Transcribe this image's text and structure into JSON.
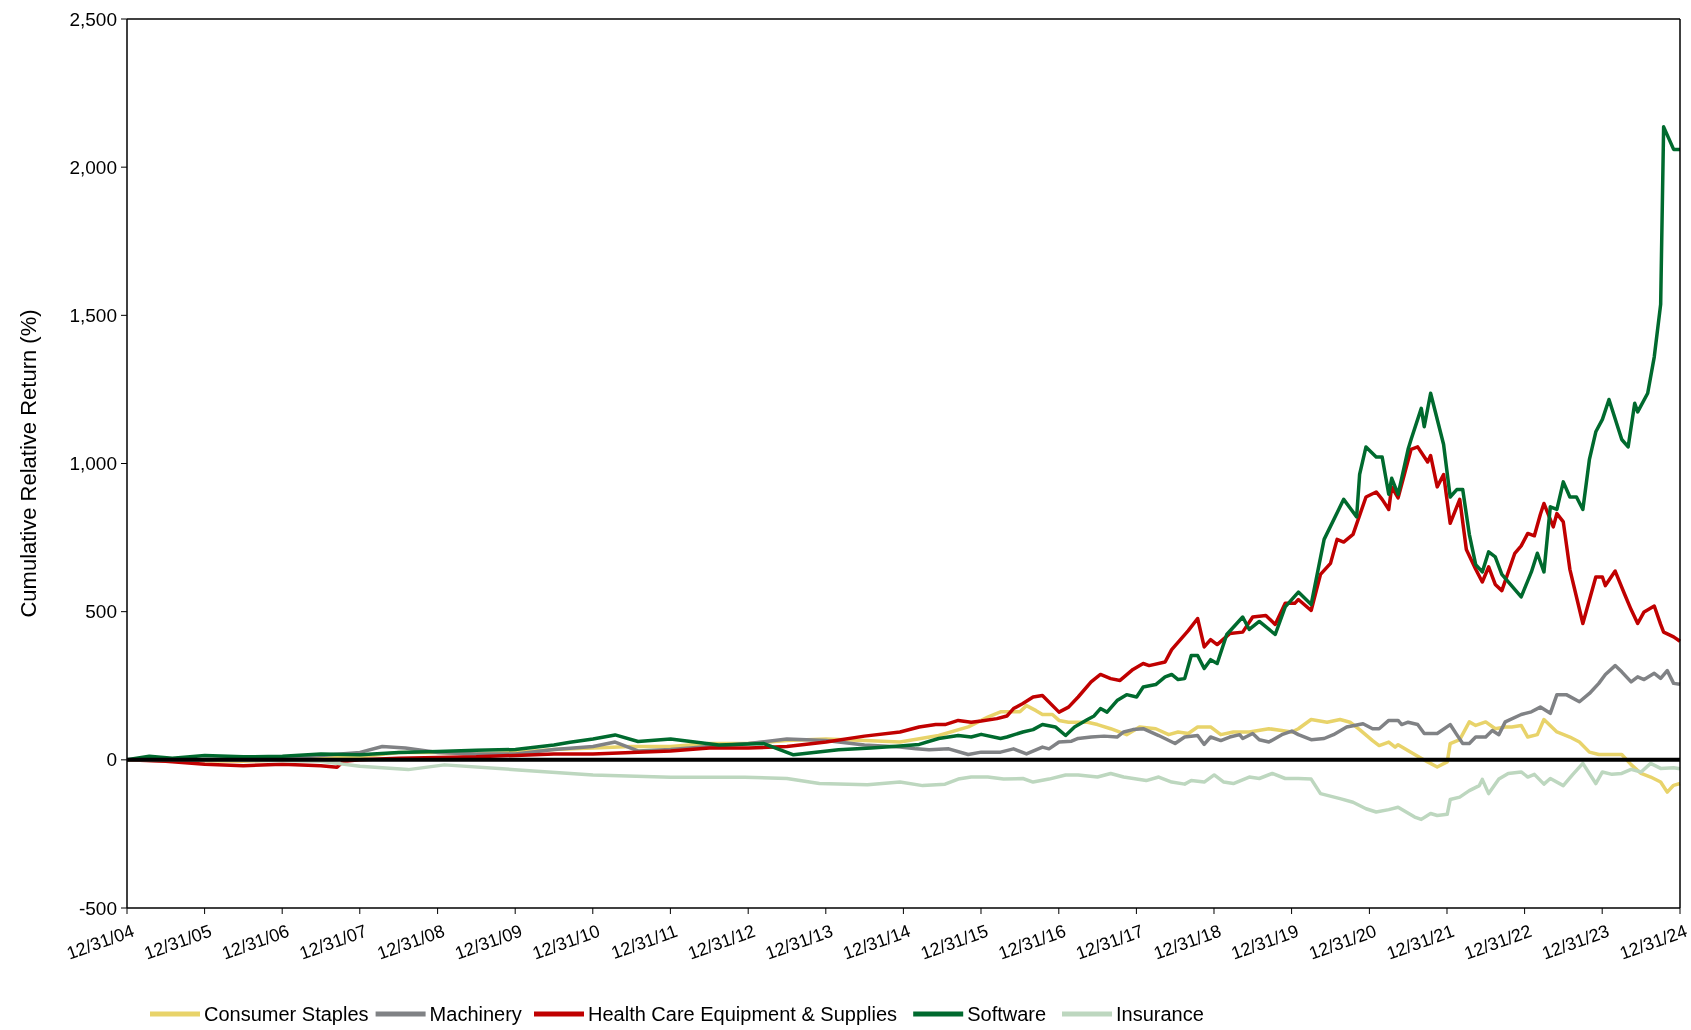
{
  "chart_data": {
    "type": "line",
    "ylabel": "Cumulative Relative Return (%)",
    "xlim": [
      "2004-12-31",
      "2024-12-31"
    ],
    "ylim": [
      -500,
      2500
    ],
    "xticks": [
      {
        "value": "2004-12-31",
        "label": "12/31/04"
      },
      {
        "value": "2005-12-31",
        "label": "12/31/05"
      },
      {
        "value": "2006-12-31",
        "label": "12/31/06"
      },
      {
        "value": "2007-12-31",
        "label": "12/31/07"
      },
      {
        "value": "2008-12-31",
        "label": "12/31/08"
      },
      {
        "value": "2009-12-31",
        "label": "12/31/09"
      },
      {
        "value": "2010-12-31",
        "label": "12/31/10"
      },
      {
        "value": "2011-12-31",
        "label": "12/31/11"
      },
      {
        "value": "2012-12-31",
        "label": "12/31/12"
      },
      {
        "value": "2013-12-31",
        "label": "12/31/13"
      },
      {
        "value": "2014-12-31",
        "label": "12/31/14"
      },
      {
        "value": "2015-12-31",
        "label": "12/31/15"
      },
      {
        "value": "2016-12-31",
        "label": "12/31/16"
      },
      {
        "value": "2017-12-31",
        "label": "12/31/17"
      },
      {
        "value": "2018-12-31",
        "label": "12/31/18"
      },
      {
        "value": "2019-12-31",
        "label": "12/31/19"
      },
      {
        "value": "2020-12-31",
        "label": "12/31/20"
      },
      {
        "value": "2021-12-31",
        "label": "12/31/21"
      },
      {
        "value": "2022-12-31",
        "label": "12/31/22"
      },
      {
        "value": "2023-12-31",
        "label": "12/31/23"
      },
      {
        "value": "2024-12-31",
        "label": "12/31/24"
      }
    ],
    "yticks": [
      {
        "value": -500,
        "label": "-500"
      },
      {
        "value": 0,
        "label": "0"
      },
      {
        "value": 500,
        "label": "500"
      },
      {
        "value": 1000,
        "label": "1,000"
      },
      {
        "value": 1500,
        "label": "1,500"
      },
      {
        "value": 2000,
        "label": "2,000"
      },
      {
        "value": 2500,
        "label": "2,500"
      }
    ],
    "legend": "bottom",
    "marker": "none",
    "line_style": "solid",
    "series": [
      {
        "name": "Consumer Staples",
        "color": "#e8d36a",
        "x": [
          "2004-12-31",
          "2005-07-01",
          "2006-01-01",
          "2006-07-01",
          "2007-01-01",
          "2007-07-01",
          "2008-01-01",
          "2008-07-01",
          "2009-01-01",
          "2009-07-01",
          "2010-01-01",
          "2010-07-01",
          "2011-01-01",
          "2011-07-01",
          "2012-01-01",
          "2012-07-01",
          "2013-01-01",
          "2013-07-01",
          "2014-01-01",
          "2014-07-01",
          "2014-12-15",
          "2015-06-15",
          "2015-11-01",
          "2016-02-01",
          "2016-04-01",
          "2016-07-01",
          "2016-08-01",
          "2016-09-15",
          "2016-10-15",
          "2016-12-01",
          "2017-01-01",
          "2017-02-15",
          "2017-05-15",
          "2017-07-01",
          "2017-09-01",
          "2017-11-15",
          "2018-01-15",
          "2018-04-01",
          "2018-06-01",
          "2018-07-15",
          "2018-09-01",
          "2018-10-15",
          "2018-12-15",
          "2019-02-01",
          "2019-04-01",
          "2019-06-15",
          "2019-09-15",
          "2019-11-15",
          "2020-01-01",
          "2020-02-01",
          "2020-04-01",
          "2020-06-15",
          "2020-08-15",
          "2020-10-01",
          "2020-11-15",
          "2021-01-15",
          "2021-02-15",
          "2021-04-01",
          "2021-05-01",
          "2021-05-15",
          "2021-08-01",
          "2021-10-01",
          "2021-11-15",
          "2022-01-01",
          "2022-01-15",
          "2022-03-01",
          "2022-04-15",
          "2022-05-15",
          "2022-07-01",
          "2022-08-15",
          "2022-10-01",
          "2022-11-01",
          "2022-12-15",
          "2023-01-15",
          "2023-03-01",
          "2023-04-01",
          "2023-06-01",
          "2023-08-01",
          "2023-09-15",
          "2023-11-01",
          "2023-12-15",
          "2024-04-01",
          "2024-05-15",
          "2024-07-01",
          "2024-08-15",
          "2024-10-01",
          "2024-11-01",
          "2024-12-01",
          "2024-12-31"
        ],
        "values": [
          0,
          0,
          -3,
          -5,
          0,
          5,
          10,
          25,
          25,
          20,
          25,
          35,
          40,
          45,
          45,
          55,
          55,
          65,
          70,
          65,
          60,
          82,
          111,
          144,
          162,
          162,
          183,
          166,
          153,
          153,
          133,
          127,
          127,
          119,
          105,
          85,
          111,
          105,
          85,
          94,
          89,
          111,
          111,
          85,
          94,
          94,
          105,
          99,
          94,
          105,
          136,
          127,
          136,
          127,
          102,
          65,
          48,
          60,
          43,
          51,
          18,
          -7,
          -24,
          -7,
          55,
          68,
          128,
          116,
          128,
          105,
          111,
          111,
          116,
          77,
          85,
          136,
          94,
          77,
          60,
          26,
          18,
          18,
          -16,
          -46,
          -58,
          -75,
          -109,
          -86,
          -80
        ]
      },
      {
        "name": "Machinery",
        "color": "#808285",
        "x": [
          "2004-12-31",
          "2005-07-01",
          "2006-01-01",
          "2006-07-01",
          "2007-01-01",
          "2007-07-01",
          "2008-01-01",
          "2008-04-15",
          "2008-08-01",
          "2009-01-01",
          "2009-07-01",
          "2010-01-01",
          "2010-07-01",
          "2011-01-01",
          "2011-04-15",
          "2011-08-01",
          "2012-01-01",
          "2012-07-01",
          "2013-01-01",
          "2013-07-01",
          "2014-01-01",
          "2014-07-01",
          "2014-12-15",
          "2015-03-01",
          "2015-05-01",
          "2015-08-01",
          "2015-11-01",
          "2016-01-01",
          "2016-04-01",
          "2016-06-01",
          "2016-08-01",
          "2016-10-15",
          "2016-11-15",
          "2017-01-01",
          "2017-03-01",
          "2017-04-01",
          "2017-06-01",
          "2017-08-01",
          "2017-10-01",
          "2017-11-01",
          "2017-12-15",
          "2018-02-01",
          "2018-04-15",
          "2018-07-01",
          "2018-08-15",
          "2018-10-15",
          "2018-11-15",
          "2018-12-15",
          "2019-02-01",
          "2019-03-15",
          "2019-05-01",
          "2019-05-15",
          "2019-07-01",
          "2019-08-01",
          "2019-09-15",
          "2019-11-15",
          "2020-01-01",
          "2020-02-01",
          "2020-04-01",
          "2020-06-01",
          "2020-07-15",
          "2020-09-15",
          "2020-12-01",
          "2021-01-15",
          "2021-02-15",
          "2021-04-01",
          "2021-05-15",
          "2021-06-01",
          "2021-07-01",
          "2021-08-15",
          "2021-09-15",
          "2021-11-15",
          "2022-01-15",
          "2022-02-15",
          "2022-03-15",
          "2022-04-15",
          "2022-05-15",
          "2022-07-01",
          "2022-08-01",
          "2022-09-01",
          "2022-10-01",
          "2022-12-15",
          "2023-02-01",
          "2023-03-15",
          "2023-05-01",
          "2023-06-01",
          "2023-07-15",
          "2023-09-15",
          "2023-11-01",
          "2023-12-15",
          "2024-01-15",
          "2024-03-01",
          "2024-04-01",
          "2024-05-15",
          "2024-06-15",
          "2024-07-15",
          "2024-09-01",
          "2024-10-01",
          "2024-11-01",
          "2024-12-01",
          "2024-12-31"
        ],
        "values": [
          0,
          -3,
          0,
          5,
          5,
          15,
          25,
          45,
          40,
          25,
          20,
          20,
          35,
          45,
          60,
          30,
          35,
          45,
          55,
          70,
          65,
          50,
          43,
          37,
          34,
          37,
          18,
          26,
          26,
          37,
          20,
          43,
          37,
          60,
          63,
          72,
          77,
          80,
          77,
          94,
          102,
          105,
          82,
          55,
          77,
          82,
          52,
          77,
          65,
          77,
          85,
          72,
          89,
          68,
          60,
          85,
          97,
          85,
          68,
          72,
          85,
          111,
          122,
          105,
          105,
          133,
          133,
          119,
          127,
          119,
          89,
          89,
          119,
          85,
          55,
          55,
          77,
          77,
          99,
          85,
          128,
          153,
          162,
          178,
          157,
          220,
          220,
          196,
          224,
          258,
          288,
          318,
          297,
          263,
          280,
          271,
          292,
          275,
          301,
          258,
          255
        ]
      },
      {
        "name": "Health Care Equipment & Supplies",
        "color": "#c00000",
        "x": [
          "2004-12-31",
          "2005-07-01",
          "2006-01-01",
          "2006-07-01",
          "2007-01-01",
          "2007-07-01",
          "2007-09-15",
          "2007-10-15",
          "2008-01-01",
          "2008-07-01",
          "2009-01-01",
          "2009-07-01",
          "2010-01-01",
          "2010-07-01",
          "2011-01-01",
          "2011-07-01",
          "2012-01-01",
          "2012-07-01",
          "2013-01-01",
          "2013-07-01",
          "2014-01-01",
          "2014-07-01",
          "2014-12-15",
          "2015-03-15",
          "2015-06-01",
          "2015-07-15",
          "2015-09-15",
          "2015-11-15",
          "2016-01-01",
          "2016-03-15",
          "2016-05-01",
          "2016-06-01",
          "2016-07-15",
          "2016-09-01",
          "2016-10-15",
          "2017-01-01",
          "2017-02-15",
          "2017-04-01",
          "2017-06-01",
          "2017-07-15",
          "2017-09-01",
          "2017-10-15",
          "2017-12-15",
          "2018-02-01",
          "2018-03-01",
          "2018-05-15",
          "2018-06-15",
          "2018-09-01",
          "2018-10-15",
          "2018-11-15",
          "2018-12-15",
          "2019-01-15",
          "2019-03-15",
          "2019-05-15",
          "2019-07-01",
          "2019-09-01",
          "2019-10-15",
          "2019-12-01",
          "2020-01-15",
          "2020-02-01",
          "2020-04-01",
          "2020-05-15",
          "2020-07-01",
          "2020-08-01",
          "2020-09-01",
          "2020-10-15",
          "2020-12-15",
          "2021-02-01",
          "2021-03-01",
          "2021-04-01",
          "2021-04-15",
          "2021-05-15",
          "2021-07-15",
          "2021-08-15",
          "2021-10-01",
          "2021-10-15",
          "2021-11-15",
          "2021-12-15",
          "2022-01-15",
          "2022-03-01",
          "2022-04-01",
          "2022-05-15",
          "2022-06-15",
          "2022-07-15",
          "2022-08-15",
          "2022-09-15",
          "2022-11-15",
          "2022-12-15",
          "2023-01-15",
          "2023-02-15",
          "2023-03-15",
          "2023-04-01",
          "2023-05-15",
          "2023-06-01",
          "2023-07-01",
          "2023-08-01",
          "2023-10-01",
          "2023-12-01",
          "2024-01-01",
          "2024-01-15",
          "2024-03-01",
          "2024-04-15",
          "2024-05-15",
          "2024-06-15",
          "2024-07-15",
          "2024-09-01",
          "2024-10-01",
          "2024-10-15",
          "2024-12-01",
          "2024-12-31"
        ],
        "values": [
          0,
          -5,
          -15,
          -20,
          -15,
          -20,
          -25,
          -5,
          0,
          5,
          8,
          10,
          15,
          20,
          20,
          25,
          30,
          40,
          40,
          45,
          60,
          80,
          94,
          111,
          119,
          119,
          133,
          127,
          131,
          139,
          148,
          173,
          190,
          212,
          217,
          161,
          178,
          212,
          263,
          288,
          274,
          268,
          305,
          325,
          318,
          330,
          372,
          436,
          477,
          381,
          406,
          389,
          426,
          431,
          482,
          487,
          457,
          528,
          528,
          541,
          504,
          626,
          663,
          744,
          735,
          761,
          887,
          904,
          879,
          845,
          921,
          884,
          1048,
          1056,
          1005,
          1027,
          921,
          963,
          798,
          879,
          710,
          643,
          600,
          651,
          592,
          571,
          697,
          722,
          764,
          756,
          828,
          865,
          786,
          831,
          803,
          643,
          460,
          617,
          617,
          588,
          637,
          558,
          507,
          460,
          499,
          519,
          457,
          431,
          415,
          400
        ]
      },
      {
        "name": "Software",
        "color": "#006a2e",
        "x": [
          "2004-12-31",
          "2005-04-15",
          "2005-08-01",
          "2006-01-01",
          "2006-07-01",
          "2007-01-01",
          "2007-07-01",
          "2008-01-01",
          "2008-07-01",
          "2009-01-01",
          "2009-07-01",
          "2010-01-01",
          "2010-07-01",
          "2010-09-15",
          "2011-01-01",
          "2011-04-15",
          "2011-08-01",
          "2012-01-01",
          "2012-08-15",
          "2013-03-15",
          "2013-08-01",
          "2014-03-01",
          "2014-08-01",
          "2014-12-15",
          "2015-03-15",
          "2015-06-15",
          "2015-09-15",
          "2015-11-15",
          "2016-01-01",
          "2016-04-01",
          "2016-05-01",
          "2016-07-15",
          "2016-09-01",
          "2016-10-15",
          "2016-12-15",
          "2017-02-01",
          "2017-03-15",
          "2017-05-15",
          "2017-06-15",
          "2017-07-15",
          "2017-08-15",
          "2017-10-01",
          "2017-11-15",
          "2018-01-01",
          "2018-02-01",
          "2018-04-01",
          "2018-05-15",
          "2018-06-15",
          "2018-07-15",
          "2018-08-15",
          "2018-09-15",
          "2018-10-15",
          "2018-11-15",
          "2018-12-15",
          "2019-01-15",
          "2019-03-01",
          "2019-05-15",
          "2019-06-15",
          "2019-08-01",
          "2019-10-15",
          "2019-12-01",
          "2020-02-01",
          "2020-04-01",
          "2020-06-01",
          "2020-09-01",
          "2020-11-01",
          "2020-11-15",
          "2020-12-15",
          "2021-02-01",
          "2021-03-01",
          "2021-04-01",
          "2021-04-15",
          "2021-05-15",
          "2021-07-01",
          "2021-07-15",
          "2021-09-01",
          "2021-09-15",
          "2021-10-15",
          "2021-12-15",
          "2022-01-15",
          "2022-02-15",
          "2022-03-15",
          "2022-04-15",
          "2022-05-15",
          "2022-06-15",
          "2022-07-15",
          "2022-08-15",
          "2022-09-15",
          "2022-12-15",
          "2023-02-01",
          "2023-03-01",
          "2023-04-01",
          "2023-05-01",
          "2023-06-01",
          "2023-07-01",
          "2023-08-01",
          "2023-09-01",
          "2023-10-01",
          "2023-11-01",
          "2023-12-01",
          "2024-01-01",
          "2024-02-01",
          "2024-04-01",
          "2024-05-01",
          "2024-06-01",
          "2024-06-15",
          "2024-08-01",
          "2024-09-01",
          "2024-10-01",
          "2024-10-15",
          "2024-12-01",
          "2024-12-31"
        ],
        "values": [
          0,
          12,
          5,
          15,
          10,
          12,
          20,
          17,
          25,
          28,
          32,
          35,
          50,
          59,
          70,
          84,
          62,
          70,
          50,
          55,
          17,
          34,
          40,
          47,
          52,
          72,
          82,
          77,
          86,
          72,
          77,
          94,
          102,
          119,
          111,
          82,
          111,
          136,
          148,
          173,
          161,
          200,
          220,
          212,
          246,
          254,
          280,
          288,
          271,
          274,
          352,
          352,
          308,
          338,
          325,
          423,
          482,
          440,
          467,
          423,
          516,
          566,
          524,
          744,
          879,
          820,
          963,
          1056,
          1022,
          1022,
          896,
          950,
          896,
          1048,
          1081,
          1186,
          1124,
          1237,
          1064,
          887,
          912,
          912,
          761,
          659,
          634,
          702,
          685,
          626,
          550,
          634,
          697,
          634,
          854,
          845,
          938,
          887,
          887,
          845,
          1014,
          1107,
          1149,
          1216,
          1081,
          1056,
          1203,
          1174,
          1237,
          1360,
          1537,
          2136,
          2060,
          2060
        ]
      },
      {
        "name": "Insurance",
        "color": "#bdd7bf",
        "x": [
          "2004-12-31",
          "2006-01-01",
          "2007-01-01",
          "2007-07-01",
          "2008-01-01",
          "2008-08-15",
          "2009-02-01",
          "2010-01-15",
          "2011-01-01",
          "2012-01-01",
          "2012-12-15",
          "2013-07-01",
          "2013-12-01",
          "2014-07-15",
          "2014-12-15",
          "2015-04-01",
          "2015-07-15",
          "2015-09-15",
          "2015-11-15",
          "2016-02-01",
          "2016-04-15",
          "2016-07-15",
          "2016-09-01",
          "2016-11-15",
          "2017-02-01",
          "2017-04-01",
          "2017-07-01",
          "2017-09-01",
          "2017-11-01",
          "2018-02-15",
          "2018-04-15",
          "2018-06-15",
          "2018-08-15",
          "2018-09-15",
          "2018-11-15",
          "2019-01-01",
          "2019-02-15",
          "2019-04-01",
          "2019-06-15",
          "2019-08-01",
          "2019-10-01",
          "2019-12-01",
          "2020-02-01",
          "2020-04-01",
          "2020-05-15",
          "2020-08-15",
          "2020-10-15",
          "2020-12-15",
          "2021-02-01",
          "2021-04-01",
          "2021-05-15",
          "2021-08-01",
          "2021-09-01",
          "2021-10-15",
          "2021-11-15",
          "2022-01-01",
          "2022-01-15",
          "2022-03-01",
          "2022-04-15",
          "2022-06-01",
          "2022-06-15",
          "2022-07-15",
          "2022-09-01",
          "2022-10-15",
          "2022-12-15",
          "2023-01-15",
          "2023-02-15",
          "2023-04-01",
          "2023-05-01",
          "2023-07-01",
          "2023-08-15",
          "2023-10-01",
          "2023-12-01",
          "2024-01-01",
          "2024-02-15",
          "2024-04-01",
          "2024-05-15",
          "2024-07-01",
          "2024-08-15",
          "2024-10-01",
          "2024-12-01",
          "2024-12-31"
        ],
        "values": [
          0,
          0,
          -3,
          -5,
          -22,
          -33,
          -17,
          -34,
          -51,
          -59,
          -59,
          -63,
          -80,
          -84,
          -75,
          -87,
          -82,
          -65,
          -58,
          -58,
          -65,
          -63,
          -75,
          -65,
          -51,
          -51,
          -58,
          -46,
          -58,
          -70,
          -58,
          -75,
          -82,
          -70,
          -75,
          -51,
          -75,
          -80,
          -58,
          -63,
          -46,
          -63,
          -63,
          -65,
          -114,
          -131,
          -143,
          -165,
          -176,
          -168,
          -160,
          -193,
          -201,
          -181,
          -188,
          -184,
          -134,
          -126,
          -104,
          -87,
          -66,
          -114,
          -65,
          -46,
          -41,
          -58,
          -49,
          -82,
          -63,
          -87,
          -49,
          -12,
          -80,
          -41,
          -49,
          -46,
          -32,
          -41,
          -12,
          -29,
          -27,
          -30
        ]
      },
      {
        "color": "#000000",
        "x": [
          "2004-12-31",
          "2024-12-31"
        ],
        "values": [
          0,
          0
        ]
      }
    ]
  }
}
